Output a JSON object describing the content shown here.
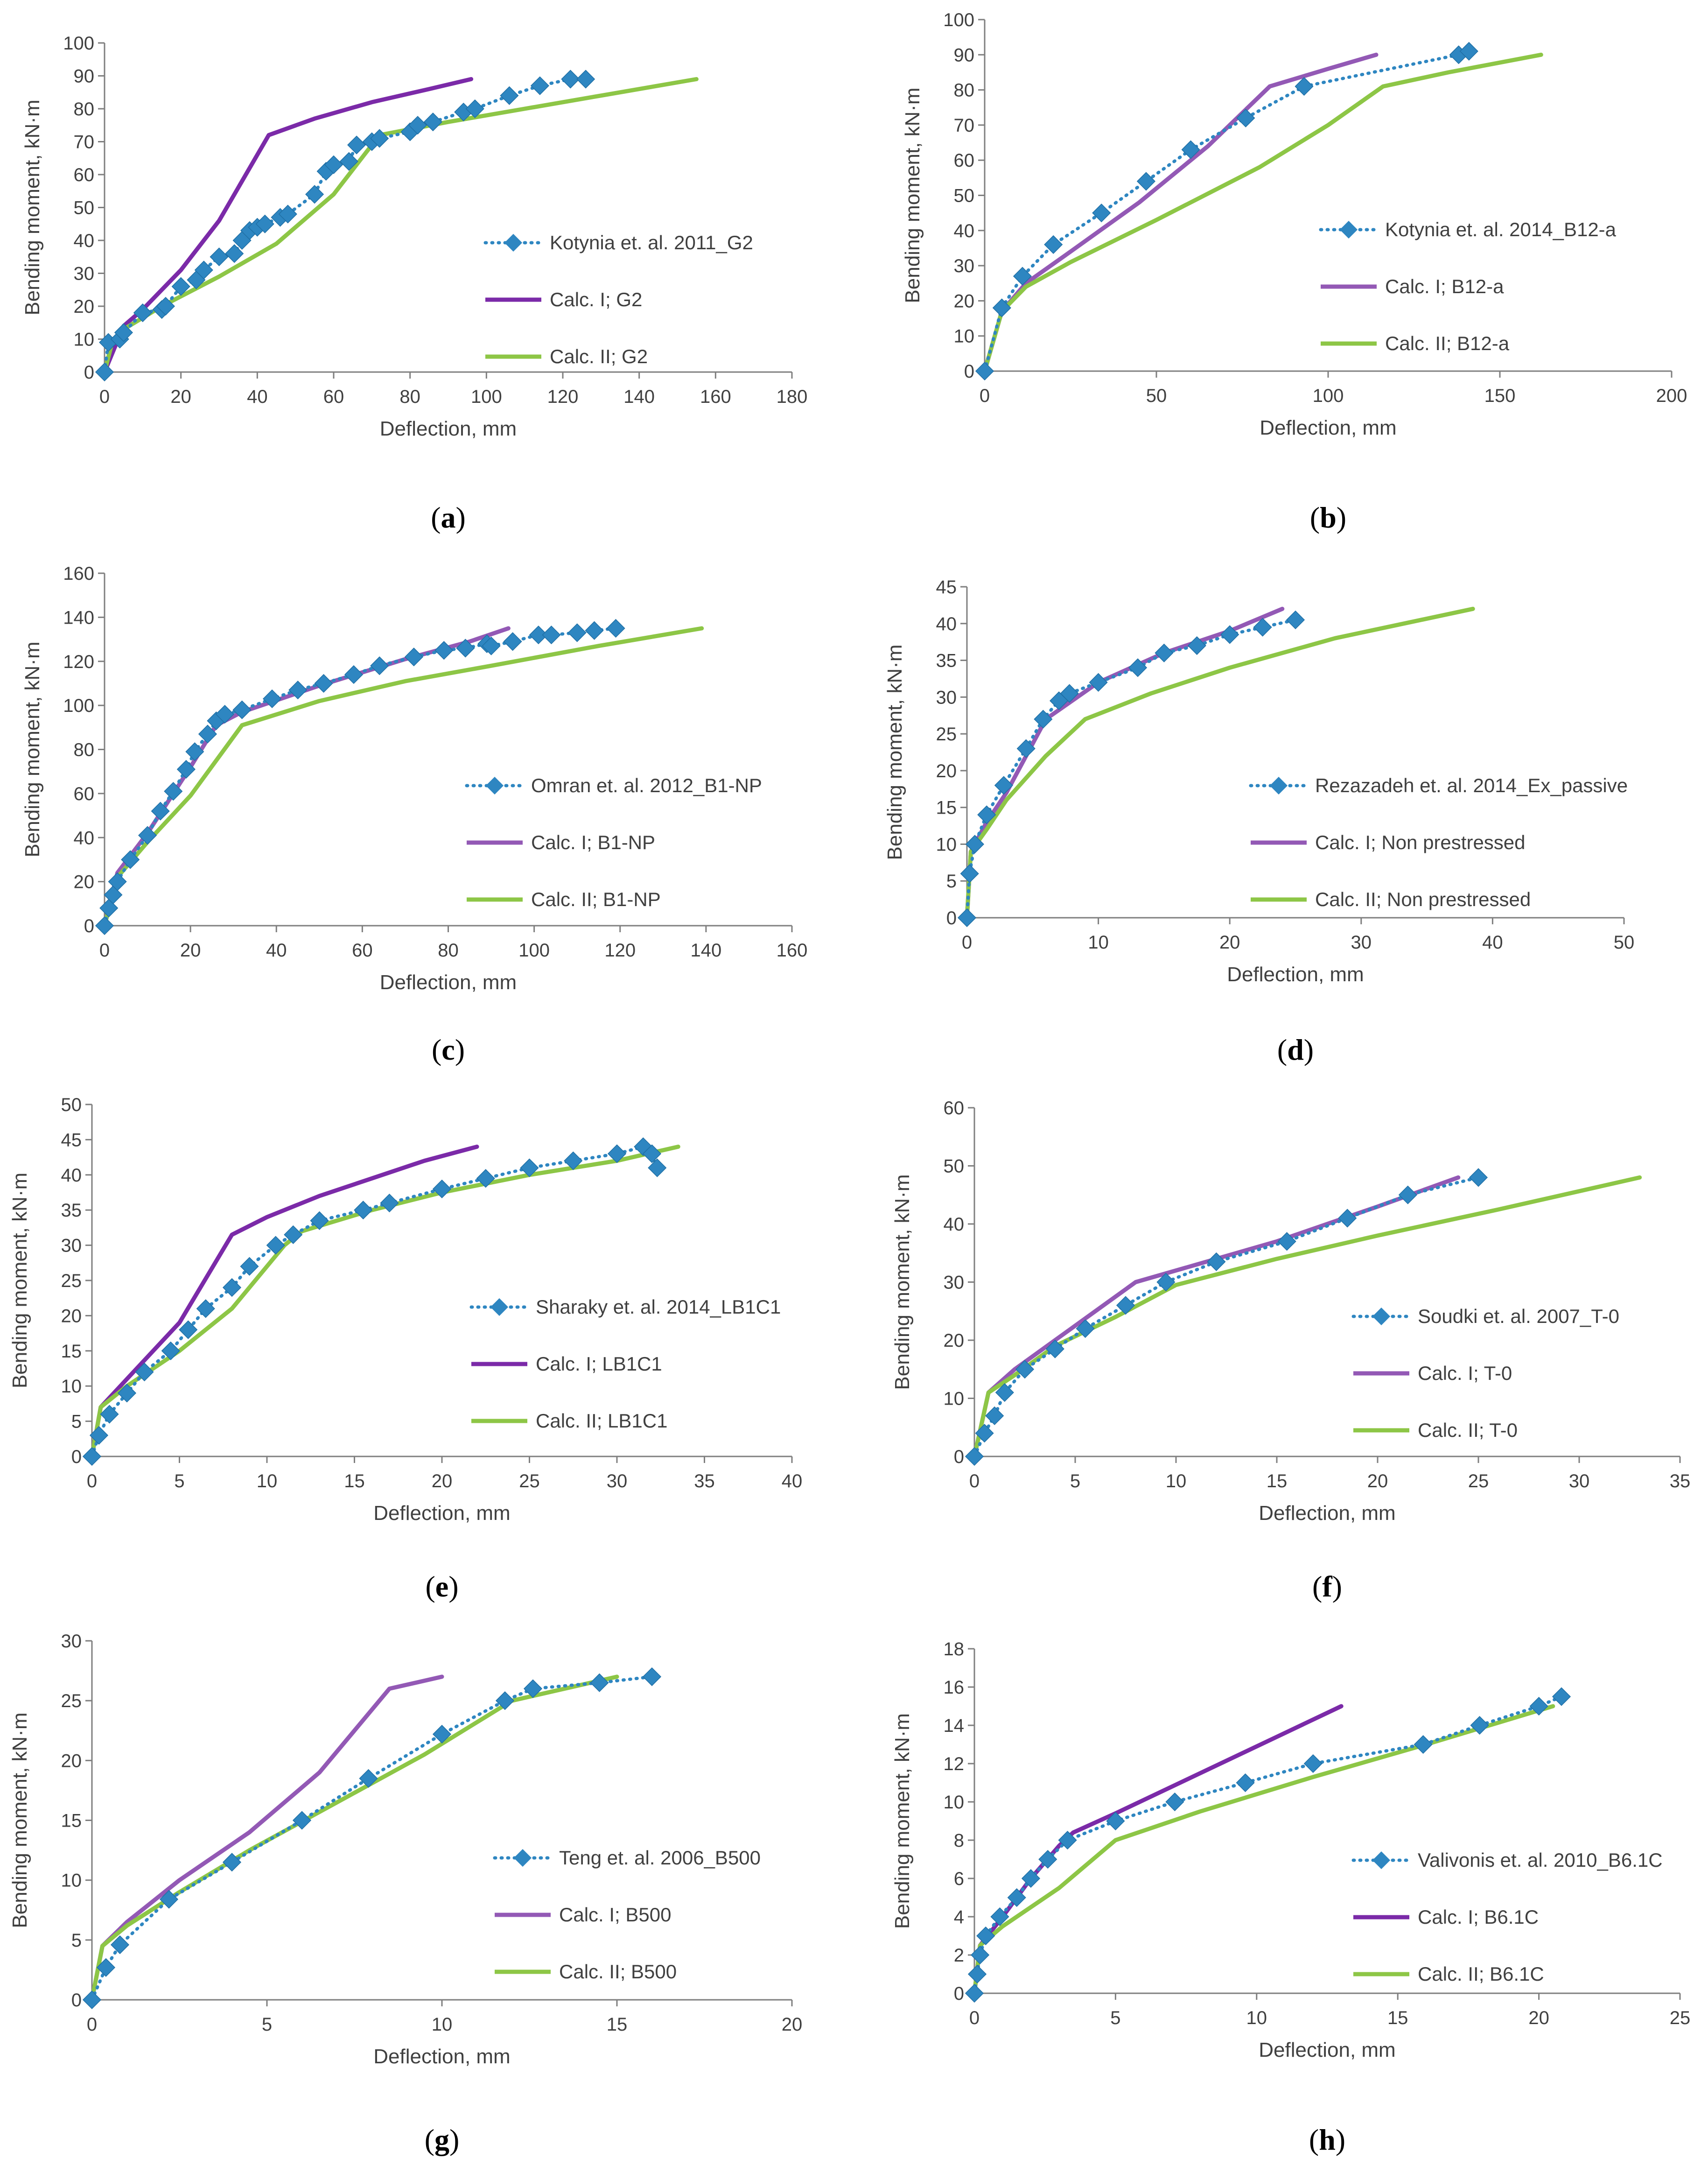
{
  "figure": {
    "panel_labels": [
      "a",
      "b",
      "c",
      "d",
      "e",
      "f",
      "g",
      "h"
    ]
  },
  "colors": {
    "experimental": "#2E86C1",
    "calc_i_dark": "#7B2AA8",
    "calc_i_light": "#9359B5",
    "calc_ii": "#8DC646",
    "axis": "#7F7F7F",
    "text": "#404040"
  },
  "chart_data": [
    {
      "type": "line",
      "panel": "a",
      "xlabel": "Deflection, mm",
      "ylabel": "Bending moment, kN·m",
      "xlim": [
        0,
        180
      ],
      "ylim": [
        0,
        100
      ],
      "xticks": [
        0,
        20,
        40,
        60,
        80,
        100,
        120,
        140,
        160,
        180
      ],
      "yticks": [
        0,
        10,
        20,
        30,
        40,
        50,
        60,
        70,
        80,
        90,
        100
      ],
      "series": [
        {
          "name": "Kotynia et. al. 2011_G2",
          "kind": "experimental",
          "x": [
            0,
            1,
            4,
            5,
            10,
            15,
            16,
            20,
            24,
            26,
            30,
            34,
            36,
            38,
            40,
            42,
            46,
            48,
            55,
            58,
            60,
            64,
            66,
            70,
            72,
            80,
            82,
            86,
            94,
            97,
            106,
            114,
            122,
            126
          ],
          "y": [
            0,
            9,
            10,
            12,
            18,
            19,
            20,
            26,
            28,
            31,
            35,
            36,
            40,
            43,
            44,
            45,
            47,
            48,
            54,
            61,
            63,
            64,
            69,
            70,
            71,
            73,
            75,
            76,
            79,
            80,
            84,
            87,
            89,
            89
          ]
        },
        {
          "name": "Calc. I; G2",
          "kind": "calc_i_dark",
          "x": [
            0,
            5,
            10,
            20,
            30,
            43,
            55,
            70,
            85,
            96
          ],
          "y": [
            0,
            14,
            19,
            31,
            46,
            72,
            77,
            82,
            86,
            89
          ]
        },
        {
          "name": "Calc. II; G2",
          "kind": "calc_ii",
          "x": [
            0,
            2,
            5,
            15,
            30,
            45,
            60,
            72,
            90,
            110,
            130,
            155
          ],
          "y": [
            0,
            9,
            13,
            20,
            29,
            39,
            54,
            72,
            76,
            80,
            84,
            89
          ]
        }
      ]
    },
    {
      "type": "line",
      "panel": "b",
      "xlabel": "Deflection, mm",
      "ylabel": "Bending moment, kN·m",
      "xlim": [
        0,
        200
      ],
      "ylim": [
        0,
        100
      ],
      "xticks": [
        0,
        50,
        100,
        150,
        200
      ],
      "yticks": [
        0,
        10,
        20,
        30,
        40,
        50,
        60,
        70,
        80,
        90,
        100
      ],
      "series": [
        {
          "name": "Kotynia et. al. 2014_B12-a",
          "kind": "experimental",
          "x": [
            0,
            5,
            11,
            20,
            34,
            47,
            60,
            76,
            93,
            138,
            141
          ],
          "y": [
            0,
            18,
            27,
            36,
            45,
            54,
            63,
            72,
            81,
            90,
            91
          ]
        },
        {
          "name": "Calc. I; B12-a",
          "kind": "calc_i_light",
          "x": [
            0,
            5,
            12,
            25,
            45,
            65,
            83,
            100,
            114
          ],
          "y": [
            0,
            17,
            25,
            34,
            48,
            64,
            81,
            86,
            90
          ]
        },
        {
          "name": "Calc. II; B12-a",
          "kind": "calc_ii",
          "x": [
            0,
            5,
            12,
            25,
            50,
            80,
            100,
            116,
            135,
            162
          ],
          "y": [
            0,
            17,
            24,
            31,
            43,
            58,
            70,
            81,
            85,
            90
          ]
        }
      ]
    },
    {
      "type": "line",
      "panel": "c",
      "xlabel": "Deflection, mm",
      "ylabel": "Bending moment, kN·m",
      "xlim": [
        0,
        160
      ],
      "ylim": [
        0,
        160
      ],
      "xticks": [
        0,
        20,
        40,
        60,
        80,
        100,
        120,
        140,
        160
      ],
      "yticks": [
        0,
        20,
        40,
        60,
        80,
        100,
        120,
        140,
        160
      ],
      "series": [
        {
          "name": "Omran et. al. 2012_B1-NP",
          "kind": "experimental",
          "x": [
            0,
            1,
            2,
            3,
            6,
            10,
            13,
            16,
            19,
            21,
            24,
            26,
            28,
            32,
            39,
            45,
            51,
            58,
            64,
            72,
            79,
            84,
            89,
            90,
            95,
            101,
            104,
            110,
            114,
            119
          ],
          "y": [
            0,
            8,
            14,
            20,
            30,
            41,
            52,
            61,
            71,
            79,
            87,
            93,
            96,
            98,
            103,
            107,
            110,
            114,
            118,
            122,
            125,
            126,
            128,
            127,
            129,
            132,
            132,
            133,
            134,
            135
          ]
        },
        {
          "name": "Calc. I; B1-NP",
          "kind": "calc_i_light",
          "x": [
            0,
            3,
            10,
            20,
            26,
            32,
            50,
            70,
            85,
            94
          ],
          "y": [
            0,
            24,
            42,
            72,
            91,
            97,
            109,
            121,
            129,
            135
          ]
        },
        {
          "name": "Calc. II; B1-NP",
          "kind": "calc_ii",
          "x": [
            0,
            3,
            10,
            20,
            32,
            50,
            70,
            90,
            115,
            139
          ],
          "y": [
            0,
            22,
            38,
            59,
            91,
            102,
            111,
            118,
            127,
            135
          ]
        }
      ]
    },
    {
      "type": "line",
      "panel": "d",
      "xlabel": "Deflection, mm",
      "ylabel": "Bending moment, kN·m",
      "xlim": [
        0,
        50
      ],
      "ylim": [
        0,
        45
      ],
      "xticks": [
        0,
        10,
        20,
        30,
        40,
        50
      ],
      "yticks": [
        0,
        5,
        10,
        15,
        20,
        25,
        30,
        35,
        40,
        45
      ],
      "series": [
        {
          "name": "Rezazadeh et. al. 2014_Ex_passive",
          "kind": "experimental",
          "x": [
            0,
            0.2,
            0.6,
            1.5,
            2.8,
            4.5,
            5.8,
            7,
            7.8,
            10,
            13,
            15,
            17.5,
            20,
            22.5,
            25
          ],
          "y": [
            0,
            6,
            10,
            14,
            18,
            23,
            27,
            29.5,
            30.5,
            32,
            34,
            36,
            37,
            38.5,
            39.5,
            40.5
          ]
        },
        {
          "name": "Calc. I; Non prestressed",
          "kind": "calc_i_light",
          "x": [
            0,
            0.3,
            1.5,
            3,
            6,
            10,
            15,
            20,
            24
          ],
          "y": [
            0,
            9,
            13,
            17,
            27,
            32,
            36,
            39,
            42
          ]
        },
        {
          "name": "Calc. II; Non prestressed",
          "kind": "calc_ii",
          "x": [
            0,
            0.3,
            1.5,
            3,
            6,
            9,
            14,
            20,
            28,
            38.5
          ],
          "y": [
            0,
            9,
            12,
            16,
            22,
            27,
            30.5,
            34,
            38,
            42
          ]
        }
      ]
    },
    {
      "type": "line",
      "panel": "e",
      "xlabel": "Deflection, mm",
      "ylabel": "Bending moment, kN·m",
      "xlim": [
        0,
        40
      ],
      "ylim": [
        0,
        50
      ],
      "xticks": [
        0,
        5,
        10,
        15,
        20,
        25,
        30,
        35,
        40
      ],
      "yticks": [
        0,
        5,
        10,
        15,
        20,
        25,
        30,
        35,
        40,
        45,
        50
      ],
      "series": [
        {
          "name": "Sharaky et. al. 2014_LB1C1",
          "kind": "experimental",
          "x": [
            0,
            0.4,
            1,
            2,
            3,
            4.5,
            5.5,
            6.5,
            8,
            9,
            10.5,
            11.5,
            13,
            15.5,
            17,
            20,
            22.5,
            25,
            27.5,
            30,
            31.5,
            32,
            32.3
          ],
          "y": [
            0,
            3,
            6,
            9,
            12,
            15,
            18,
            21,
            24,
            27,
            30,
            31.5,
            33.5,
            35,
            36,
            38,
            39.5,
            41,
            42,
            43,
            44,
            43,
            41
          ]
        },
        {
          "name": "Calc. I; LB1C1",
          "kind": "calc_i_dark",
          "x": [
            0,
            0.5,
            2,
            5,
            8,
            10,
            13,
            16,
            19,
            22
          ],
          "y": [
            0,
            7,
            11,
            19,
            31.5,
            34,
            37,
            39.5,
            42,
            44
          ]
        },
        {
          "name": "Calc. II; LB1C1",
          "kind": "calc_ii",
          "x": [
            0,
            0.5,
            2,
            5,
            8,
            11,
            12,
            16,
            20,
            25,
            30,
            33.5
          ],
          "y": [
            0,
            7,
            10,
            15,
            21,
            30,
            32,
            35,
            37.5,
            40,
            42,
            44
          ]
        }
      ]
    },
    {
      "type": "line",
      "panel": "f",
      "xlabel": "Deflection, mm",
      "ylabel": "Bending moment, kN·m",
      "xlim": [
        0,
        35
      ],
      "ylim": [
        0,
        60
      ],
      "xticks": [
        0,
        5,
        10,
        15,
        20,
        25,
        30,
        35
      ],
      "yticks": [
        0,
        10,
        20,
        30,
        40,
        50,
        60
      ],
      "series": [
        {
          "name": "Soudki et. al. 2007_T-0",
          "kind": "experimental",
          "x": [
            0,
            0.5,
            1,
            1.5,
            2.5,
            4,
            5.5,
            7.5,
            9.5,
            12,
            15.5,
            18.5,
            21.5,
            25
          ],
          "y": [
            0,
            4,
            7,
            11,
            15,
            18.5,
            22,
            26,
            30,
            33.5,
            37,
            41,
            45,
            48
          ]
        },
        {
          "name": "Calc. I; T-0",
          "kind": "calc_i_light",
          "x": [
            0,
            0.7,
            2,
            4,
            6,
            8,
            11,
            15,
            20,
            24
          ],
          "y": [
            0,
            11,
            15,
            20,
            25,
            30,
            33,
            37,
            43,
            48
          ]
        },
        {
          "name": "Calc. II; T-0",
          "kind": "calc_ii",
          "x": [
            0,
            0.7,
            2,
            4,
            7,
            10,
            15,
            20,
            26,
            33
          ],
          "y": [
            0,
            11,
            14,
            19,
            24,
            29.5,
            34,
            38,
            42.5,
            48
          ]
        }
      ]
    },
    {
      "type": "line",
      "panel": "g",
      "xlabel": "Deflection, mm",
      "ylabel": "Bending moment, kN·m",
      "xlim": [
        0,
        20
      ],
      "ylim": [
        0,
        30
      ],
      "xticks": [
        0,
        5,
        10,
        15,
        20
      ],
      "yticks": [
        0,
        5,
        10,
        15,
        20,
        25,
        30
      ],
      "series": [
        {
          "name": "Teng et. al. 2006_B500",
          "kind": "experimental",
          "x": [
            0,
            0.4,
            0.8,
            2.2,
            4,
            6,
            7.9,
            10,
            11.8,
            12.6,
            14.5,
            16
          ],
          "y": [
            0,
            2.7,
            4.6,
            8.4,
            11.5,
            15,
            18.5,
            22.2,
            25,
            26,
            26.5,
            27
          ]
        },
        {
          "name": "Calc. I; B500",
          "kind": "calc_i_light",
          "x": [
            0,
            0.3,
            1,
            2.5,
            4.5,
            6.5,
            8.5,
            10
          ],
          "y": [
            0,
            4.5,
            6.5,
            10,
            14,
            19,
            26,
            27
          ]
        },
        {
          "name": "Calc. II; B500",
          "kind": "calc_ii",
          "x": [
            0,
            0.3,
            1,
            2.5,
            4.5,
            7,
            9.5,
            12,
            15
          ],
          "y": [
            0,
            4.5,
            6.2,
            9,
            12.5,
            16.5,
            20.5,
            25,
            27
          ]
        }
      ]
    },
    {
      "type": "line",
      "panel": "h",
      "xlabel": "Deflection, mm",
      "ylabel": "Bending moment, kN·m",
      "xlim": [
        0,
        25
      ],
      "ylim": [
        0,
        18
      ],
      "xticks": [
        0,
        5,
        10,
        15,
        20,
        25
      ],
      "yticks": [
        0,
        2,
        4,
        6,
        8,
        10,
        12,
        14,
        16,
        18
      ],
      "series": [
        {
          "name": "Valivonis et. al. 2010_B6.1C",
          "kind": "experimental",
          "x": [
            0,
            0.1,
            0.2,
            0.4,
            0.9,
            1.5,
            2,
            2.6,
            3.3,
            5,
            7.1,
            9.6,
            12,
            15.9,
            17.9,
            20,
            20.8
          ],
          "y": [
            0,
            1,
            2,
            3,
            4,
            5,
            6,
            7,
            8,
            9,
            10,
            11,
            12,
            13,
            14,
            15,
            15.5
          ]
        },
        {
          "name": "Calc. I; B6.1C",
          "kind": "calc_i_dark",
          "x": [
            0,
            0.2,
            1,
            2,
            3,
            3.5,
            5,
            7,
            9,
            11,
            13
          ],
          "y": [
            0,
            2.5,
            4,
            6,
            7.7,
            8.4,
            9.4,
            10.8,
            12.2,
            13.6,
            15
          ]
        },
        {
          "name": "Calc. II; B6.1C",
          "kind": "calc_ii",
          "x": [
            0,
            0.2,
            1,
            3,
            5,
            8,
            12,
            16,
            20.5
          ],
          "y": [
            0,
            2.5,
            3.5,
            5.5,
            8,
            9.5,
            11.3,
            13,
            15
          ]
        }
      ]
    }
  ]
}
